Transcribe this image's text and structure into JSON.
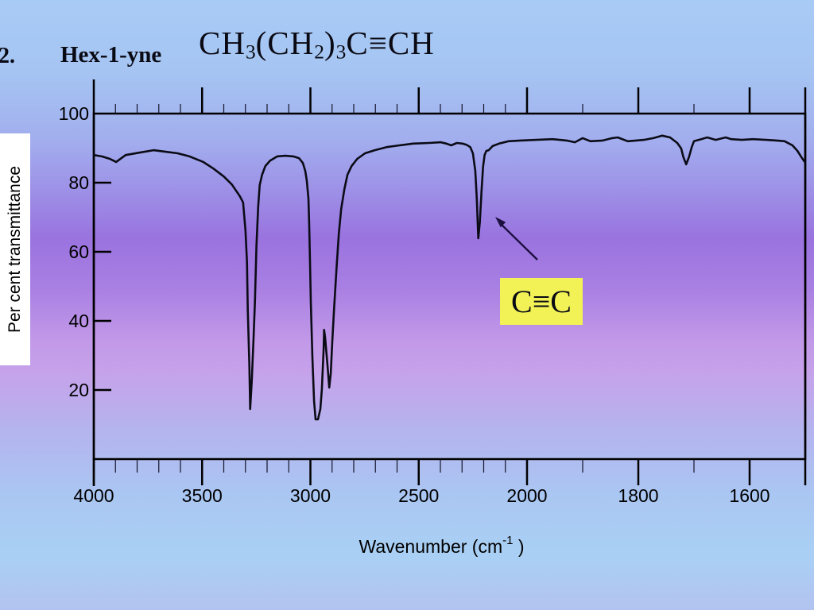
{
  "slide": {
    "number": "2.",
    "compound_name": "Hex-1-yne",
    "formula_segments": [
      {
        "text": "CH"
      },
      {
        "sub": "3"
      },
      {
        "text": "(CH"
      },
      {
        "sub": "2"
      },
      {
        "text": ")"
      },
      {
        "sub": "3"
      },
      {
        "text": "C≡CH"
      }
    ]
  },
  "colors": {
    "callout_background": "#f2f257",
    "curve": "#0b0b16",
    "arrow": "#1c1040",
    "axis": "#000000",
    "ylabel_box_background": "#ffffff"
  },
  "chart_data": {
    "type": "line",
    "title": "",
    "xlabel_parts": {
      "main": "Wavenumber (cm",
      "sup": "-1",
      "end": " )"
    },
    "ylabel": "Per cent transmittance",
    "x_axis": {
      "direction": "decreasing",
      "range": [
        4000,
        1500
      ],
      "major_ticks": [
        4000,
        3500,
        3000,
        2500,
        2000,
        1800,
        1600
      ],
      "minor_ticks": [
        3900,
        3800,
        3700,
        3600,
        3400,
        3300,
        3200,
        3100,
        2900,
        2800,
        2700,
        2600,
        2400,
        2300,
        2200,
        2100,
        1900,
        1700
      ],
      "scale_note": "axis compressed: 500 per division above 2000, 200 per division below 2000"
    },
    "y_axis": {
      "range": [
        0,
        100
      ],
      "ticks": [
        100,
        80,
        60,
        40,
        20
      ]
    },
    "annotation": {
      "label": "C≡C",
      "target_wavenumber": 2200
    },
    "series": [
      {
        "name": "Hex-1-yne IR spectrum",
        "points": [
          [
            4000,
            88
          ],
          [
            3963,
            87.6
          ],
          [
            3926,
            86.9
          ],
          [
            3897,
            86
          ],
          [
            3853,
            88
          ],
          [
            3790,
            88.7
          ],
          [
            3724,
            89.4
          ],
          [
            3661,
            88.9
          ],
          [
            3613,
            88.5
          ],
          [
            3558,
            87.6
          ],
          [
            3495,
            86
          ],
          [
            3448,
            84.1
          ],
          [
            3400,
            81.8
          ],
          [
            3363,
            79.5
          ],
          [
            3326,
            76.1
          ],
          [
            3311,
            74.3
          ],
          [
            3300,
            66.2
          ],
          [
            3293,
            57
          ],
          [
            3289,
            43.2
          ],
          [
            3282,
            27.1
          ],
          [
            3278,
            14.5
          ],
          [
            3271,
            22.5
          ],
          [
            3263,
            34
          ],
          [
            3256,
            45.5
          ],
          [
            3249,
            61.6
          ],
          [
            3241,
            73.1
          ],
          [
            3234,
            79.3
          ],
          [
            3223,
            82.3
          ],
          [
            3208,
            84.8
          ],
          [
            3186,
            86.4
          ],
          [
            3153,
            87.6
          ],
          [
            3116,
            87.8
          ],
          [
            3079,
            87.6
          ],
          [
            3053,
            87.1
          ],
          [
            3035,
            85.7
          ],
          [
            3024,
            83.4
          ],
          [
            3017,
            80.7
          ],
          [
            3009,
            75.4
          ],
          [
            3006,
            68.5
          ],
          [
            3002,
            57
          ],
          [
            2998,
            45.5
          ],
          [
            2991,
            29.4
          ],
          [
            2983,
            16.8
          ],
          [
            2976,
            11.5
          ],
          [
            2965,
            11.5
          ],
          [
            2954,
            14.5
          ],
          [
            2947,
            20.2
          ],
          [
            2939,
            31.7
          ],
          [
            2937,
            37.4
          ],
          [
            2932,
            35.2
          ],
          [
            2921,
            27.1
          ],
          [
            2913,
            20.7
          ],
          [
            2906,
            24.8
          ],
          [
            2899,
            34
          ],
          [
            2891,
            43.2
          ],
          [
            2880,
            54.7
          ],
          [
            2869,
            65.1
          ],
          [
            2858,
            72.4
          ],
          [
            2843,
            78.2
          ],
          [
            2829,
            82.3
          ],
          [
            2810,
            84.8
          ],
          [
            2784,
            86.9
          ],
          [
            2748,
            88.5
          ],
          [
            2703,
            89.4
          ],
          [
            2648,
            90.3
          ],
          [
            2589,
            90.8
          ],
          [
            2527,
            91.3
          ],
          [
            2453,
            91.5
          ],
          [
            2398,
            91.7
          ],
          [
            2372,
            91.3
          ],
          [
            2350,
            90.8
          ],
          [
            2324,
            91.5
          ],
          [
            2298,
            91.3
          ],
          [
            2280,
            91
          ],
          [
            2262,
            90.3
          ],
          [
            2250,
            88.5
          ],
          [
            2239,
            83.4
          ],
          [
            2232,
            75.4
          ],
          [
            2228,
            68.5
          ],
          [
            2225,
            63.9
          ],
          [
            2218,
            68.5
          ],
          [
            2210,
            77.7
          ],
          [
            2203,
            84.6
          ],
          [
            2196,
            88
          ],
          [
            2188,
            89.2
          ],
          [
            2177,
            89.4
          ],
          [
            2159,
            90.6
          ],
          [
            2129,
            91.3
          ],
          [
            2085,
            92
          ],
          [
            2030,
            92.2
          ],
          [
            1983,
            92.4
          ],
          [
            1954,
            92.6
          ],
          [
            1929,
            92.2
          ],
          [
            1914,
            91.7
          ],
          [
            1900,
            92.9
          ],
          [
            1886,
            92
          ],
          [
            1864,
            92.2
          ],
          [
            1847,
            92.9
          ],
          [
            1837,
            93.1
          ],
          [
            1819,
            92
          ],
          [
            1804,
            92.2
          ],
          [
            1790,
            92.4
          ],
          [
            1773,
            92.9
          ],
          [
            1757,
            93.6
          ],
          [
            1743,
            93.1
          ],
          [
            1730,
            91.5
          ],
          [
            1723,
            89.9
          ],
          [
            1719,
            87.4
          ],
          [
            1714,
            85.3
          ],
          [
            1709,
            87.4
          ],
          [
            1704,
            90.3
          ],
          [
            1700,
            92
          ],
          [
            1687,
            92.6
          ],
          [
            1676,
            93.1
          ],
          [
            1661,
            92.4
          ],
          [
            1643,
            93.1
          ],
          [
            1633,
            92.6
          ],
          [
            1614,
            92.4
          ],
          [
            1594,
            92.6
          ],
          [
            1571,
            92.4
          ],
          [
            1551,
            92.2
          ],
          [
            1537,
            92
          ],
          [
            1523,
            90.8
          ],
          [
            1514,
            89.2
          ],
          [
            1507,
            87.4
          ],
          [
            1501,
            86
          ]
        ]
      }
    ]
  }
}
